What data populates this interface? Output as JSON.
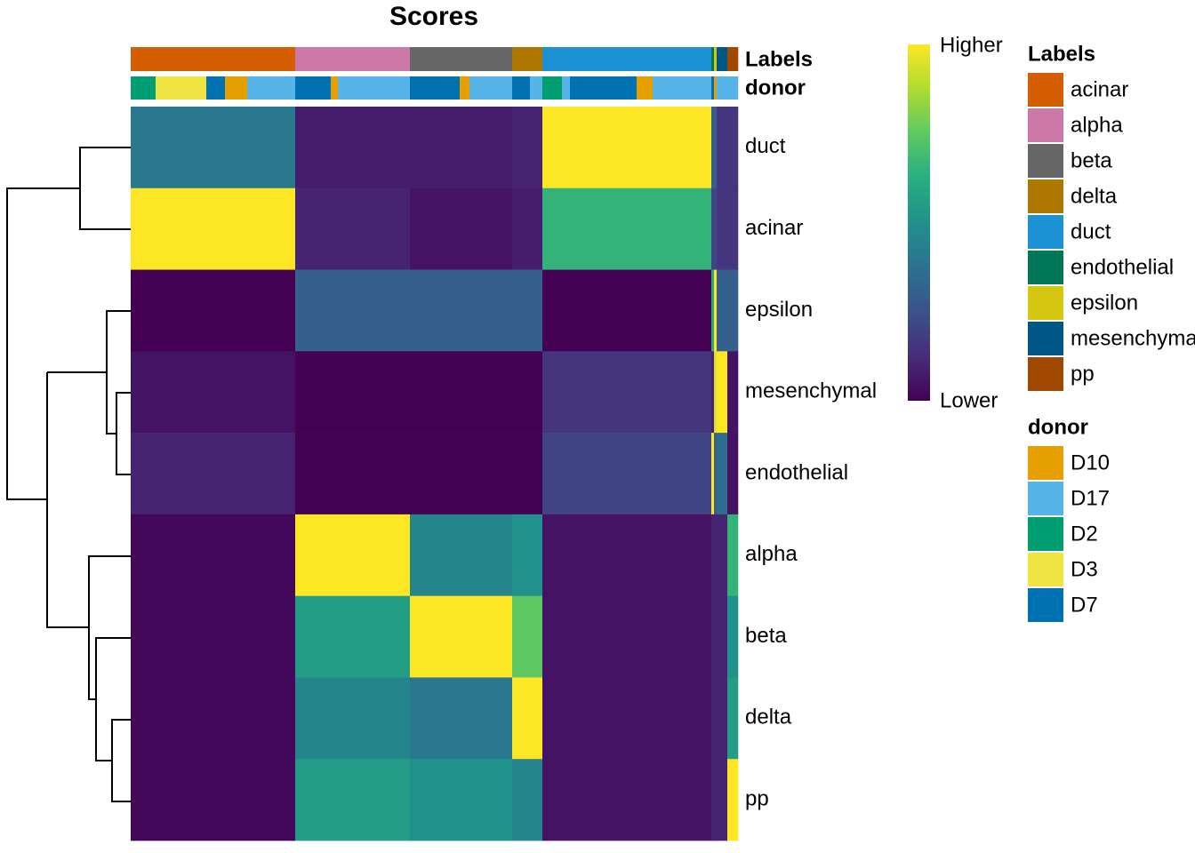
{
  "chart_data": {
    "type": "heatmap",
    "title": "Scores",
    "colormap": "viridis",
    "zlim": [
      0,
      1
    ],
    "colorbar_labels": {
      "high": "Higher",
      "low": "Lower"
    },
    "rows": [
      "duct",
      "acinar",
      "epsilon",
      "mesenchymal",
      "endothelial",
      "alpha",
      "beta",
      "delta",
      "pp"
    ],
    "columns": [
      {
        "label": "acinar",
        "n": 185,
        "scores": [
          0.4,
          1,
          0,
          0.05,
          0.1,
          0.02,
          0.02,
          0.02,
          0.02
        ]
      },
      {
        "label": "alpha",
        "n": 129,
        "scores": [
          0.08,
          0.1,
          0.3,
          0,
          0,
          1,
          0.55,
          0.45,
          0.55
        ]
      },
      {
        "label": "beta",
        "n": 115,
        "scores": [
          0.08,
          0.05,
          0.3,
          0,
          0,
          0.45,
          1,
          0.4,
          0.5
        ]
      },
      {
        "label": "delta",
        "n": 34,
        "scores": [
          0.1,
          0.08,
          0.3,
          0,
          0,
          0.5,
          0.75,
          1,
          0.45
        ]
      },
      {
        "label": "duct",
        "n": 190,
        "scores": [
          1,
          0.65,
          0,
          0.15,
          0.2,
          0.05,
          0.05,
          0.05,
          0.05
        ]
      },
      {
        "label": "endothelial",
        "n": 3,
        "scores": [
          0.3,
          0.2,
          0.6,
          0.1,
          1,
          0.1,
          0.1,
          0.1,
          0.1
        ]
      },
      {
        "label": "epsilon",
        "n": 3,
        "scores": [
          0.3,
          0.2,
          1,
          0.95,
          0.3,
          0.1,
          0.1,
          0.1,
          0.1
        ]
      },
      {
        "label": "mesenchymal",
        "n": 12,
        "scores": [
          0.15,
          0.15,
          0.3,
          1,
          0.35,
          0.1,
          0.1,
          0.1,
          0.1
        ]
      },
      {
        "label": "pp",
        "n": 12,
        "scores": [
          0.15,
          0.15,
          0.3,
          0.05,
          0.05,
          0.65,
          0.5,
          0.55,
          1
        ]
      }
    ],
    "donors": [
      {
        "name": "D2",
        "n": 28
      },
      {
        "name": "D3",
        "n": 57
      },
      {
        "name": "D7",
        "n": 21
      },
      {
        "name": "D10",
        "n": 25
      },
      {
        "name": "D17",
        "n": 54
      },
      {
        "name": "D7",
        "n": 40
      },
      {
        "name": "D10",
        "n": 8
      },
      {
        "name": "D17",
        "n": 81
      },
      {
        "name": "D7",
        "n": 56
      },
      {
        "name": "D10",
        "n": 11
      },
      {
        "name": "D17",
        "n": 48
      },
      {
        "name": "D7",
        "n": 20
      },
      {
        "name": "D17",
        "n": 14
      },
      {
        "name": "D2",
        "n": 22
      },
      {
        "name": "D17",
        "n": 9
      },
      {
        "name": "D7",
        "n": 75
      },
      {
        "name": "D10",
        "n": 18
      },
      {
        "name": "D17",
        "n": 66
      },
      {
        "name": "D7",
        "n": 3
      },
      {
        "name": "D10",
        "n": 3
      },
      {
        "name": "D17",
        "n": 12
      },
      {
        "name": "D17",
        "n": 12
      }
    ],
    "label_legend": {
      "title": "Labels",
      "items": [
        {
          "name": "acinar",
          "color": "#D55E00"
        },
        {
          "name": "alpha",
          "color": "#CC79A7"
        },
        {
          "name": "beta",
          "color": "#666666"
        },
        {
          "name": "delta",
          "color": "#AD7700"
        },
        {
          "name": "duct",
          "color": "#1C91D4"
        },
        {
          "name": "endothelial",
          "color": "#007756"
        },
        {
          "name": "epsilon",
          "color": "#D5C711"
        },
        {
          "name": "mesenchymal",
          "color": "#005685"
        },
        {
          "name": "pp",
          "color": "#A04700"
        }
      ]
    },
    "donor_legend": {
      "title": "donor",
      "items": [
        {
          "name": "D10",
          "color": "#E69F00"
        },
        {
          "name": "D17",
          "color": "#56B4E9"
        },
        {
          "name": "D2",
          "color": "#009E73"
        },
        {
          "name": "D3",
          "color": "#F0E442"
        },
        {
          "name": "D7",
          "color": "#0072B2"
        }
      ]
    }
  }
}
